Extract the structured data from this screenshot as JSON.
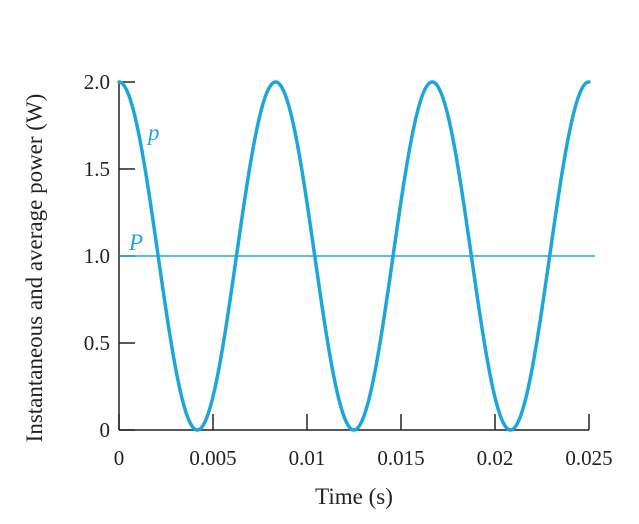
{
  "chart_data": {
    "type": "line",
    "title": "",
    "xlabel": "Time (s)",
    "ylabel": "Instantaneous and average power (W)",
    "xlim": [
      0,
      0.025
    ],
    "ylim": [
      0,
      2.0
    ],
    "x_ticks": [
      0,
      0.005,
      0.01,
      0.015,
      0.02,
      0.025
    ],
    "x_tick_labels": [
      "0",
      "0.005",
      "0.01",
      "0.015",
      "0.02",
      "0.025"
    ],
    "y_ticks": [
      0,
      0.5,
      1.0,
      1.5,
      2.0
    ],
    "y_tick_labels": [
      "0",
      "0.5",
      "1.0",
      "1.5",
      "2.0"
    ],
    "grid": false,
    "legend": "none",
    "series": [
      {
        "name": "p",
        "kind": "sinusoid",
        "period_s": 0.00833,
        "min": 0,
        "max": 2.0,
        "value_at_t0": 2.0,
        "color": "#1ea6dc"
      },
      {
        "name": "P",
        "kind": "constant",
        "value": 1.0,
        "color": "#1ea6dc"
      }
    ]
  }
}
